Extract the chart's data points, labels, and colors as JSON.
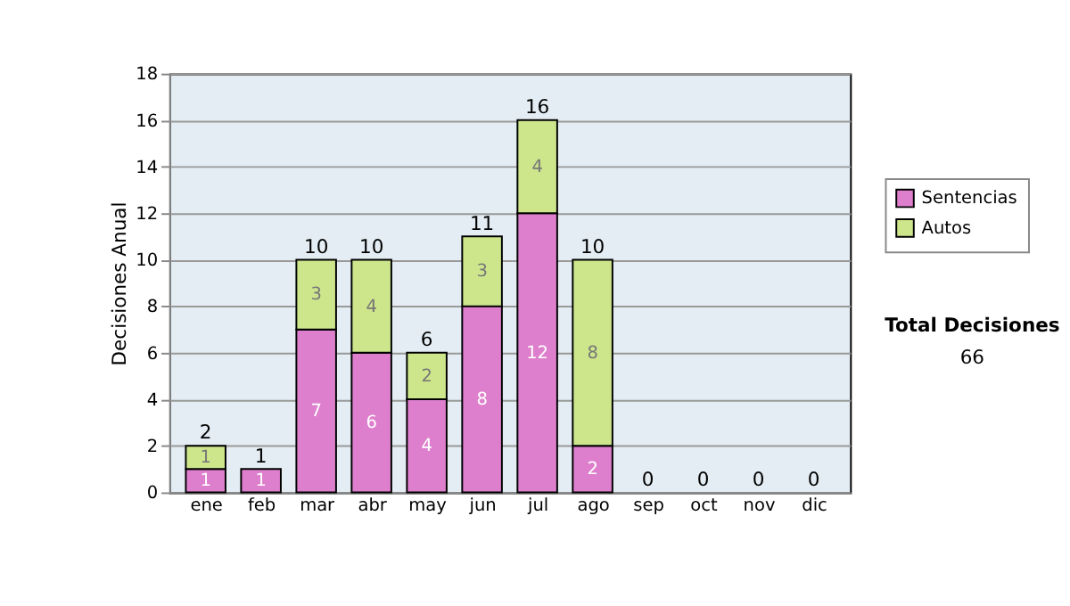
{
  "chart_data": {
    "type": "bar",
    "stacked": true,
    "ylabel": "Decisiones Anual",
    "categories": [
      "ene",
      "feb",
      "mar",
      "abr",
      "may",
      "jun",
      "jul",
      "ago",
      "sep",
      "oct",
      "nov",
      "dic"
    ],
    "series": [
      {
        "name": "Sentencias",
        "color": "#dd7fcc",
        "values": [
          1,
          1,
          7,
          6,
          4,
          8,
          12,
          2,
          0,
          0,
          0,
          0
        ],
        "value_labels": [
          "1",
          "1",
          "7",
          "6",
          "4",
          "8",
          "12",
          "2",
          null,
          null,
          null,
          null
        ]
      },
      {
        "name": "Autos",
        "color": "#cde68c",
        "values": [
          1,
          0,
          3,
          4,
          2,
          3,
          4,
          8,
          0,
          0,
          0,
          0
        ],
        "value_labels": [
          "1",
          null,
          "3",
          "4",
          "2",
          "3",
          "4",
          "8",
          null,
          null,
          null,
          null
        ]
      }
    ],
    "totals": [
      "2",
      "1",
      "10",
      "10",
      "6",
      "11",
      "16",
      "10",
      "0",
      "0",
      "0",
      "0"
    ],
    "ylim": [
      0,
      18
    ],
    "yticks": [
      0,
      2,
      4,
      6,
      8,
      10,
      12,
      14,
      16,
      18
    ],
    "grid": "y",
    "legend": "right",
    "annotations": [
      "Total Decisiones",
      "66"
    ]
  }
}
